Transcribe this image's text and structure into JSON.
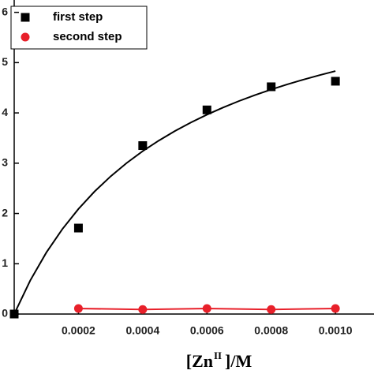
{
  "chart_data": {
    "type": "scatter",
    "x_label": {
      "base": "[Zn",
      "sup": "II",
      "tail": "]/M"
    },
    "xlim": [
      0,
      0.00112
    ],
    "ylim": [
      0,
      6.12
    ],
    "xticks": [
      {
        "value": 0.0002,
        "label": "0.0002"
      },
      {
        "value": 0.0004,
        "label": "0.0004"
      },
      {
        "value": 0.0006,
        "label": "0.0006"
      },
      {
        "value": 0.0008,
        "label": "0.0008"
      },
      {
        "value": 0.001,
        "label": "0.0010"
      }
    ],
    "yticks": [
      0,
      1,
      2,
      3,
      4,
      5,
      6
    ],
    "legend": "top-left",
    "series": [
      {
        "name": "first step",
        "color": "#000000",
        "marker": "square",
        "connect": false,
        "x": [
          0,
          0.0002,
          0.0004,
          0.0006,
          0.0008,
          0.001
        ],
        "values": [
          0,
          1.71,
          3.35,
          4.06,
          4.52,
          4.63
        ]
      },
      {
        "name": "second step",
        "color": "#e8202a",
        "marker": "circle",
        "connect": true,
        "x": [
          0.0002,
          0.0004,
          0.0006,
          0.0008,
          0.001
        ],
        "values": [
          0.11,
          0.09,
          0.11,
          0.09,
          0.11
        ]
      }
    ],
    "fit_curve": {
      "color": "#000000",
      "x": [
        0,
        5e-05,
        0.0001,
        0.00015,
        0.0002,
        0.00025,
        0.0003,
        0.00035,
        0.0004,
        0.00045,
        0.0005,
        0.00055,
        0.0006,
        0.00065,
        0.0007,
        0.00075,
        0.0008,
        0.00085,
        0.0009,
        0.00095,
        0.001
      ],
      "values": [
        0,
        0.668,
        1.223,
        1.69,
        2.09,
        2.436,
        2.737,
        3.003,
        3.239,
        3.449,
        3.639,
        3.81,
        3.965,
        4.107,
        4.237,
        4.356,
        4.466,
        4.568,
        4.662,
        4.75,
        4.832
      ]
    }
  }
}
